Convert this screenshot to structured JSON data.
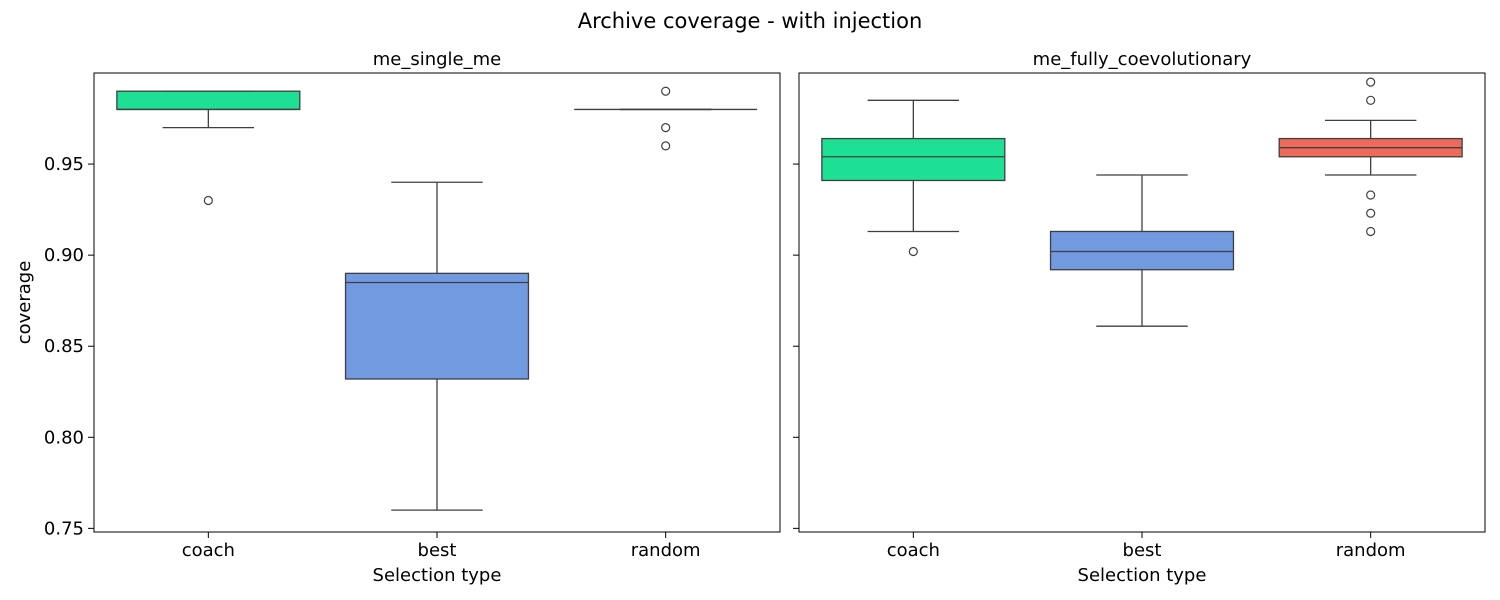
{
  "title": "Archive coverage - with injection",
  "chart_data": [
    {
      "type": "box",
      "title": "me_single_me",
      "xlabel": "Selection type",
      "ylabel": "coverage",
      "ylim": [
        0.748,
        1.0
      ],
      "yticks": [
        "0.75",
        "0.80",
        "0.85",
        "0.90",
        "0.95"
      ],
      "yticklabels_visible": true,
      "categories": [
        "coach",
        "best",
        "random"
      ],
      "colors": [
        "#1de094",
        "#729ae0",
        "#ffffff"
      ],
      "boxes": [
        {
          "category": "coach",
          "whisker_low": 0.97,
          "q1": 0.98,
          "median": 0.98,
          "q3": 0.99,
          "whisker_high": 0.99,
          "outliers": [
            0.93
          ]
        },
        {
          "category": "best",
          "whisker_low": 0.76,
          "q1": 0.832,
          "median": 0.885,
          "q3": 0.89,
          "whisker_high": 0.94,
          "outliers": []
        },
        {
          "category": "random",
          "whisker_low": 0.98,
          "q1": 0.98,
          "median": 0.98,
          "q3": 0.98,
          "whisker_high": 0.98,
          "outliers": [
            0.99,
            0.97,
            0.96
          ]
        }
      ]
    },
    {
      "type": "box",
      "title": "me_fully_coevolutionary",
      "xlabel": "Selection type",
      "ylabel": "",
      "ylim": [
        0.748,
        1.0
      ],
      "yticks": [
        "0.75",
        "0.80",
        "0.85",
        "0.90",
        "0.95"
      ],
      "yticklabels_visible": false,
      "categories": [
        "coach",
        "best",
        "random"
      ],
      "colors": [
        "#1de094",
        "#729ae0",
        "#ee6a5b"
      ],
      "boxes": [
        {
          "category": "coach",
          "whisker_low": 0.913,
          "q1": 0.941,
          "median": 0.954,
          "q3": 0.964,
          "whisker_high": 0.985,
          "outliers": [
            0.902
          ]
        },
        {
          "category": "best",
          "whisker_low": 0.861,
          "q1": 0.892,
          "median": 0.902,
          "q3": 0.913,
          "whisker_high": 0.944,
          "outliers": []
        },
        {
          "category": "random",
          "whisker_low": 0.944,
          "q1": 0.954,
          "median": 0.959,
          "q3": 0.964,
          "whisker_high": 0.974,
          "outliers": [
            0.995,
            0.985,
            0.933,
            0.923,
            0.913
          ]
        }
      ]
    }
  ]
}
